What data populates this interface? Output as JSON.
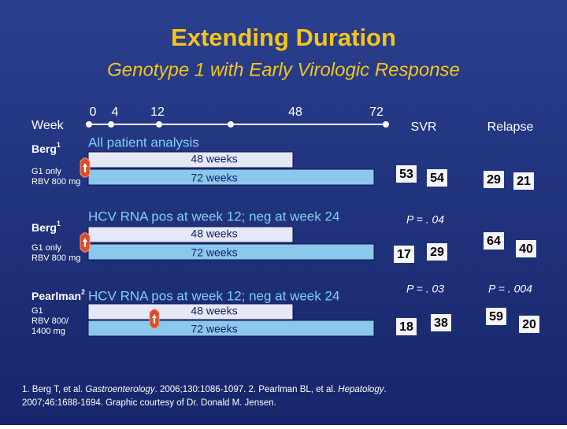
{
  "title": "Extending Duration",
  "subtitle": "Genotype 1 with Early Virologic Response",
  "week_label": "Week",
  "weeks": [
    0,
    4,
    12,
    48,
    72
  ],
  "columns": [
    "SVR",
    "Relapse"
  ],
  "studies": [
    {
      "name": "Berg",
      "ref": "1",
      "details": [
        "G1 only",
        "RBV 800 mg"
      ],
      "heading": "All patient analysis",
      "arms": [
        "48 weeks",
        "72 weeks"
      ],
      "svr": [
        53,
        54
      ],
      "relapse": [
        29,
        21
      ]
    },
    {
      "name": "Berg",
      "ref": "1",
      "details": [
        "G1 only",
        "RBV 800 mg"
      ],
      "heading": "HCV RNA pos at week 12; neg at week 24",
      "arms": [
        "48 weeks",
        "72 weeks"
      ],
      "svr": [
        17,
        29
      ],
      "relapse": [
        64,
        40
      ],
      "svr_p": "P = . 04"
    },
    {
      "name": "Pearlman",
      "ref": "2",
      "details": [
        "G1",
        "RBV 800/",
        "1400 mg"
      ],
      "heading": "HCV RNA pos at week 12; neg at week 24",
      "arms": [
        "48 weeks",
        "72 weeks"
      ],
      "svr": [
        18,
        38
      ],
      "relapse": [
        59,
        20
      ],
      "svr_p": "P = . 03",
      "relapse_p": "P = . 004"
    }
  ],
  "footnote": [
    [
      {
        "text": "1. Berg T, et al. "
      },
      {
        "text": "Gastroenterology",
        "italic": true
      },
      {
        "text": ". 2006;130:1086-1097. 2. Pearlman BL, et al. "
      },
      {
        "text": "Hepatology",
        "italic": true
      },
      {
        "text": "."
      }
    ],
    [
      {
        "text": "2007;46:1688-1694. Graphic courtesy of Dr. Donald M. Jensen."
      }
    ]
  ]
}
